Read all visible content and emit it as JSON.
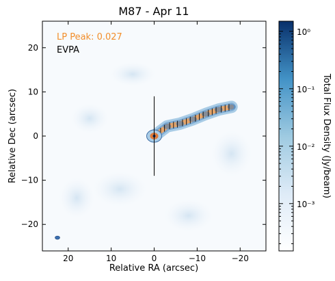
{
  "chart_data": {
    "type": "heatmap",
    "title": "M87 - Apr 11",
    "xlabel": "Relative RA (arcsec)",
    "ylabel": "Relative Dec (arcsec)",
    "xlim": [
      26,
      -26
    ],
    "ylim": [
      -26,
      26
    ],
    "x_ticks": [
      20,
      10,
      0,
      -10,
      -20
    ],
    "x_tick_labels": [
      "20",
      "10",
      "0",
      "−10",
      "−20"
    ],
    "y_ticks": [
      20,
      10,
      0,
      -10,
      -20
    ],
    "y_tick_labels": [
      "20",
      "10",
      "0",
      "−10",
      "−20"
    ],
    "grid": false,
    "colormap": [
      "#ffffff",
      "#deebf7",
      "#9ecae1",
      "#4292c6",
      "#08306b"
    ],
    "annotations": [
      {
        "text": "LP Peak: 0.027",
        "color": "#f28e2b"
      },
      {
        "text": "EVPA",
        "color": "#000000"
      }
    ],
    "colorbar": {
      "label": "Total Flux Density (Jy/beam)",
      "scale": "log",
      "range": [
        0.00015,
        1.5
      ],
      "tick_values": [
        1,
        0.1,
        0.01,
        0.001
      ],
      "tick_labels": [
        "10⁰",
        "10⁻¹",
        "10⁻²",
        "10⁻³"
      ]
    },
    "jet": {
      "core": [
        0,
        0
      ],
      "knots": [
        [
          -3,
          2.2
        ],
        [
          -6,
          2.8
        ],
        [
          -9,
          3.8
        ],
        [
          -12,
          5
        ],
        [
          -15,
          6
        ],
        [
          -18,
          6.6
        ]
      ],
      "evpa_line": {
        "x": 0,
        "y_range": [
          -9,
          9
        ]
      },
      "beam_position": [
        22.5,
        -23
      ]
    }
  }
}
